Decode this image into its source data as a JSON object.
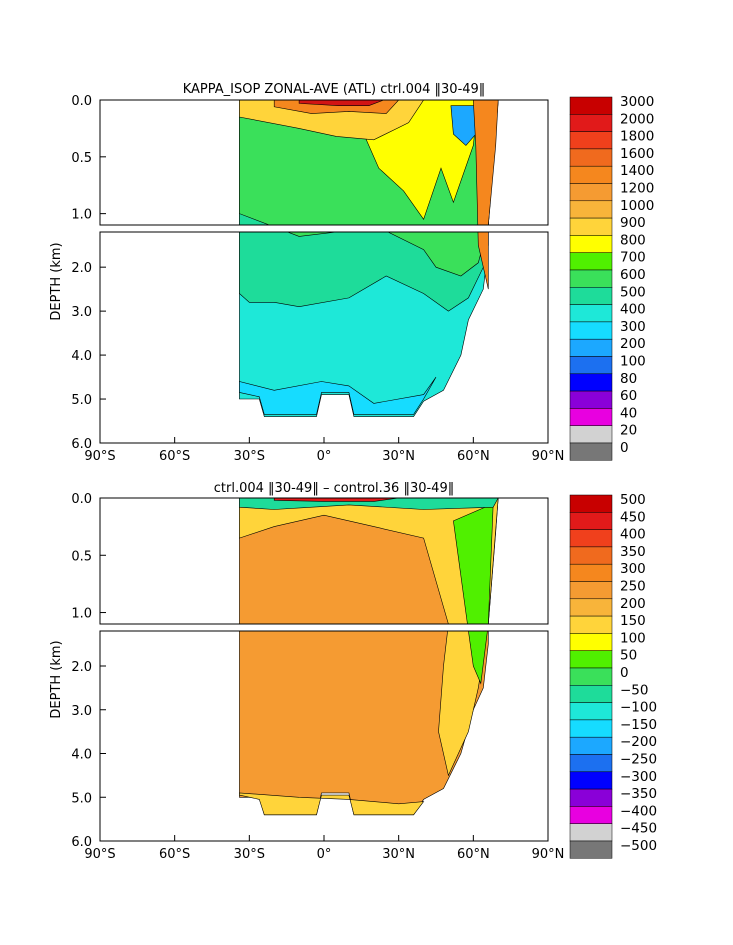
{
  "chart_data": [
    {
      "type": "heatmap",
      "title": "KAPPA_ISOP ZONAL-AVE (ATL) ctrl.004 ‖30-49‖",
      "ylabel": "DEPTH (km)",
      "xlabel": "",
      "x_ticks": [
        "90°S",
        "60°S",
        "30°S",
        "0°",
        "30°N",
        "60°N",
        "90°N"
      ],
      "y_ticks_upper": [
        "0.0",
        "0.5",
        "1.0"
      ],
      "y_ticks_lower": [
        "2.0",
        "3.0",
        "4.0",
        "5.0",
        "6.0"
      ],
      "xlim": [
        -90,
        90
      ],
      "ylim_km": [
        0,
        6
      ],
      "colorbar_levels": [
        "3000",
        "2000",
        "1800",
        "1600",
        "1400",
        "1200",
        "1000",
        "900",
        "800",
        "700",
        "600",
        "500",
        "400",
        "300",
        "200",
        "100",
        "80",
        "60",
        "40",
        "20",
        "0"
      ],
      "colorbar_colors": [
        "#c80000",
        "#e11a1a",
        "#f0401c",
        "#f06a1e",
        "#f5871e",
        "#f59b32",
        "#f8b43a",
        "#ffd43a",
        "#ffff00",
        "#50f000",
        "#3ae05a",
        "#1edc9a",
        "#1ee8d8",
        "#16dcff",
        "#1ca8ff",
        "#1c70f0",
        "#0000ff",
        "#8a00d8",
        "#e800e0",
        "#d2d2d2",
        "#777777"
      ],
      "field_colors": {
        "deep": "#1ee8d8",
        "intermediate": "#1edc9a",
        "mid": "#3ae05a",
        "mid2": "#50f000",
        "yellow": "#ffff00",
        "light": "#ffd43a",
        "orange": "#f5871e",
        "red": "#d21414",
        "blue": "#1ca8ff",
        "edge": "#16dcff"
      }
    },
    {
      "type": "heatmap",
      "title": "ctrl.004 ‖30-49‖ – control.36 ‖30-49‖",
      "ylabel": "DEPTH (km)",
      "xlabel": "",
      "x_ticks": [
        "90°S",
        "60°S",
        "30°S",
        "0°",
        "30°N",
        "60°N",
        "90°N"
      ],
      "y_ticks_upper": [
        "0.0",
        "0.5",
        "1.0"
      ],
      "y_ticks_lower": [
        "2.0",
        "3.0",
        "4.0",
        "5.0",
        "6.0"
      ],
      "xlim": [
        -90,
        90
      ],
      "ylim_km": [
        0,
        6
      ],
      "colorbar_levels": [
        "500",
        "450",
        "400",
        "350",
        "300",
        "250",
        "200",
        "150",
        "100",
        "50",
        "0",
        "−50",
        "−100",
        "−150",
        "−200",
        "−250",
        "−300",
        "−350",
        "−400",
        "−450",
        "−500"
      ],
      "colorbar_colors": [
        "#c80000",
        "#e11a1a",
        "#f0401c",
        "#f06a1e",
        "#f5871e",
        "#f59b32",
        "#f8b43a",
        "#ffd43a",
        "#ffff00",
        "#50f000",
        "#3ae05a",
        "#1edc9a",
        "#1ee8d8",
        "#16dcff",
        "#1ca8ff",
        "#1c70f0",
        "#0000ff",
        "#8a00d8",
        "#e800e0",
        "#d2d2d2",
        "#777777"
      ],
      "field_colors": {
        "main": "#f59b32",
        "edge": "#f8b43a",
        "light": "#ffd43a",
        "green": "#3ae05a",
        "yellowgreen": "#50f000",
        "surfgreen": "#1edc9a",
        "surfred": "#e11a1a",
        "bottom": "#ffd43a"
      }
    }
  ]
}
